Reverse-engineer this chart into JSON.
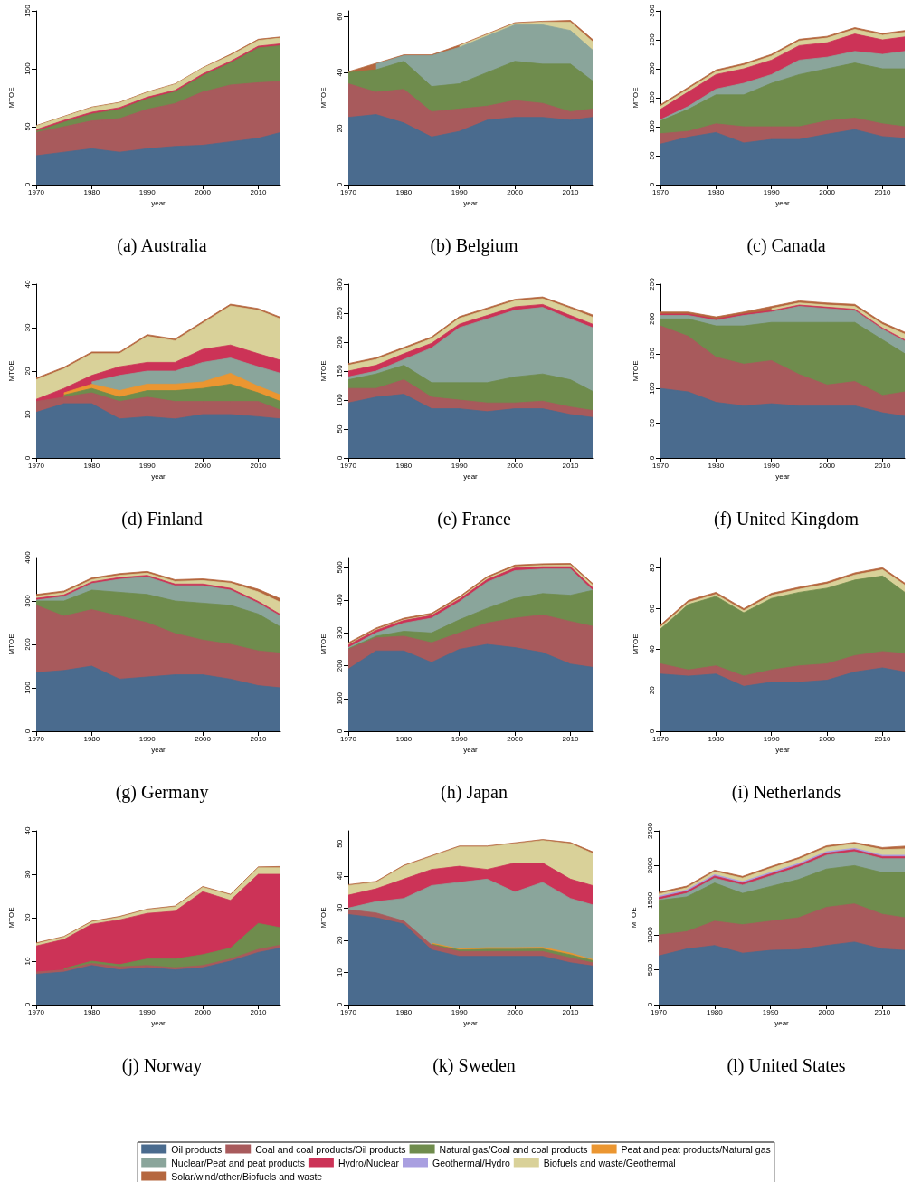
{
  "chart_data": [
    {
      "type": "area",
      "stacked": true,
      "title": "(a) Australia",
      "xlabel": "year",
      "ylabel": "MTOE",
      "x": [
        1970,
        1975,
        1980,
        1985,
        1990,
        1995,
        2000,
        2005,
        2010,
        2014
      ],
      "xlim": [
        1970,
        2014
      ],
      "xticks": [
        1970,
        1980,
        1990,
        2000,
        2010
      ],
      "ylim": [
        0,
        150
      ],
      "yticks": [
        0,
        50,
        100,
        150
      ],
      "series": [
        {
          "color": "#4a6b8e",
          "values": [
            25,
            28,
            31,
            28,
            31,
            33,
            34,
            37,
            40,
            45
          ]
        },
        {
          "color": "#a85a5c",
          "values": [
            20,
            22,
            24,
            29,
            34,
            37,
            46,
            49,
            48,
            44
          ]
        },
        {
          "color": "#6f8c4d",
          "values": [
            1,
            4,
            6,
            8,
            9,
            10,
            14,
            19,
            30,
            31
          ]
        },
        {
          "color": "#cc3357",
          "values": [
            1.5,
            1.5,
            1.5,
            1.5,
            1.5,
            1.5,
            1.5,
            1.5,
            1.5,
            1.5
          ]
        },
        {
          "color": "#d9d199",
          "values": [
            3,
            3,
            4,
            4,
            4,
            5,
            5,
            5,
            5,
            5
          ]
        },
        {
          "color": "#b5673f",
          "values": [
            0.5,
            0.5,
            0.5,
            0.5,
            0.5,
            0.5,
            0.5,
            1,
            1,
            1
          ]
        }
      ]
    },
    {
      "type": "area",
      "stacked": true,
      "title": "(b) Belgium",
      "xlabel": "year",
      "ylabel": "MTOE",
      "x": [
        1970,
        1975,
        1980,
        1985,
        1990,
        1995,
        2000,
        2005,
        2010,
        2014
      ],
      "xlim": [
        1970,
        2014
      ],
      "xticks": [
        1970,
        1980,
        1990,
        2000,
        2010
      ],
      "ylim": [
        0,
        62
      ],
      "yticks": [
        0,
        20,
        40,
        60
      ],
      "series": [
        {
          "color": "#4a6b8e",
          "values": [
            24,
            25,
            22,
            17,
            19,
            23,
            24,
            24,
            23,
            24
          ]
        },
        {
          "color": "#a85a5c",
          "values": [
            12,
            8,
            12,
            9,
            8,
            5,
            6,
            5,
            3,
            3
          ]
        },
        {
          "color": "#6f8c4d",
          "values": [
            4,
            8,
            10,
            9,
            9,
            12,
            14,
            14,
            17,
            10
          ]
        },
        {
          "color": "#8aa59b",
          "values": [
            null,
            2,
            2,
            11,
            13,
            13,
            13,
            14,
            12,
            11
          ]
        },
        {
          "color": "#d9d199",
          "values": [
            null,
            null,
            null,
            null,
            0.5,
            0.5,
            0.5,
            1,
            3,
            3
          ]
        },
        {
          "color": "#b5673f",
          "values": [
            0.3,
            0.3,
            0.3,
            0.3,
            0.3,
            0.3,
            0.3,
            0.3,
            0.6,
            0.8
          ]
        }
      ]
    },
    {
      "type": "area",
      "stacked": true,
      "title": "(c) Canada",
      "xlabel": "year",
      "ylabel": "MTOE",
      "x": [
        1970,
        1975,
        1980,
        1985,
        1990,
        1995,
        2000,
        2005,
        2010,
        2014
      ],
      "xlim": [
        1970,
        2014
      ],
      "xticks": [
        1970,
        1980,
        1990,
        2000,
        2010
      ],
      "ylim": [
        0,
        300
      ],
      "yticks": [
        0,
        50,
        100,
        150,
        200,
        250,
        300
      ],
      "series": [
        {
          "color": "#4a6b8e",
          "values": [
            70,
            82,
            90,
            72,
            78,
            78,
            87,
            95,
            83,
            80
          ]
        },
        {
          "color": "#a85a5c",
          "values": [
            18,
            10,
            15,
            28,
            22,
            22,
            23,
            20,
            22,
            20
          ]
        },
        {
          "color": "#6f8c4d",
          "values": [
            22,
            38,
            50,
            55,
            75,
            90,
            90,
            95,
            95,
            100
          ]
        },
        {
          "color": "#8aa59b",
          "values": [
            2,
            5,
            10,
            20,
            15,
            25,
            20,
            20,
            25,
            30
          ]
        },
        {
          "color": "#cc3357",
          "values": [
            18,
            25,
            25,
            25,
            25,
            25,
            25,
            30,
            25,
            25
          ]
        },
        {
          "color": "#d9d199",
          "values": [
            5,
            5,
            5,
            6,
            7,
            8,
            8,
            8,
            8,
            8
          ]
        },
        {
          "color": "#b5673f",
          "values": [
            3,
            3,
            3,
            3,
            3,
            3,
            3,
            3,
            3,
            3
          ]
        }
      ]
    },
    {
      "type": "area",
      "stacked": true,
      "title": "(d) Finland",
      "xlabel": "year",
      "ylabel": "MTOE",
      "x": [
        1970,
        1975,
        1980,
        1985,
        1990,
        1995,
        2000,
        2005,
        2010,
        2014
      ],
      "xlim": [
        1970,
        2014
      ],
      "xticks": [
        1970,
        1980,
        1990,
        2000,
        2010
      ],
      "ylim": [
        0,
        40
      ],
      "yticks": [
        0,
        10,
        20,
        30,
        40
      ],
      "series": [
        {
          "color": "#4a6b8e",
          "values": [
            10.5,
            12.5,
            12.5,
            9,
            9.5,
            9,
            10,
            10,
            9.5,
            9
          ]
        },
        {
          "color": "#a85a5c",
          "values": [
            2.5,
            1.5,
            2.5,
            4,
            4.5,
            4,
            3,
            3,
            3.5,
            2
          ]
        },
        {
          "color": "#6f8c4d",
          "values": [
            null,
            0.5,
            1,
            1,
            1.5,
            2.5,
            3,
            4,
            2,
            2
          ]
        },
        {
          "color": "#eb9631",
          "values": [
            null,
            0.5,
            1,
            1.5,
            1.5,
            1.5,
            1.5,
            2.5,
            1.5,
            1.5
          ]
        },
        {
          "color": "#8aa59b",
          "values": [
            null,
            null,
            0.5,
            3.5,
            3,
            3,
            4.5,
            3.5,
            4.5,
            5
          ]
        },
        {
          "color": "#cc3357",
          "values": [
            0.5,
            1,
            1.5,
            2,
            2,
            2,
            3,
            3,
            3,
            3
          ]
        },
        {
          "color": "#d9d199",
          "values": [
            4.5,
            4.5,
            5,
            3,
            6,
            5,
            6,
            9,
            10,
            9.5
          ]
        },
        {
          "color": "#b5673f",
          "values": [
            0.4,
            0.4,
            0.4,
            0.4,
            0.4,
            0.4,
            0.4,
            0.4,
            0.4,
            0.4
          ]
        }
      ]
    },
    {
      "type": "area",
      "stacked": true,
      "title": "(e) France",
      "xlabel": "year",
      "ylabel": "MTOE",
      "x": [
        1970,
        1975,
        1980,
        1985,
        1990,
        1995,
        2000,
        2005,
        2010,
        2014
      ],
      "xlim": [
        1970,
        2014
      ],
      "xticks": [
        1970,
        1980,
        1990,
        2000,
        2010
      ],
      "ylim": [
        0,
        300
      ],
      "yticks": [
        0,
        50,
        100,
        150,
        200,
        250,
        300
      ],
      "series": [
        {
          "color": "#4a6b8e",
          "values": [
            95,
            105,
            110,
            85,
            85,
            80,
            85,
            85,
            75,
            70
          ]
        },
        {
          "color": "#a85a5c",
          "values": [
            25,
            15,
            25,
            20,
            15,
            15,
            10,
            13,
            13,
            12
          ]
        },
        {
          "color": "#6f8c4d",
          "values": [
            15,
            25,
            25,
            25,
            30,
            35,
            45,
            47,
            47,
            33
          ]
        },
        {
          "color": "#8aa59b",
          "values": [
            5,
            5,
            10,
            60,
            95,
            110,
            115,
            115,
            105,
            110
          ]
        },
        {
          "color": "#cc3357",
          "values": [
            10,
            10,
            10,
            8,
            6,
            6,
            6,
            5,
            6,
            6
          ]
        },
        {
          "color": "#d9d199",
          "values": [
            10,
            10,
            8,
            8,
            10,
            10,
            10,
            10,
            12,
            12
          ]
        },
        {
          "color": "#b5673f",
          "values": [
            3,
            3,
            3,
            3,
            3,
            3,
            3,
            3,
            3,
            4
          ]
        }
      ]
    },
    {
      "type": "area",
      "stacked": true,
      "title": "(f) United Kingdom",
      "xlabel": "year",
      "ylabel": "MTOE",
      "x": [
        1970,
        1975,
        1980,
        1985,
        1990,
        1995,
        2000,
        2005,
        2010,
        2014
      ],
      "xlim": [
        1970,
        2014
      ],
      "xticks": [
        1970,
        1980,
        1990,
        2000,
        2010
      ],
      "ylim": [
        0,
        250
      ],
      "yticks": [
        0,
        50,
        100,
        150,
        200,
        250
      ],
      "series": [
        {
          "color": "#4a6b8e",
          "values": [
            100,
            95,
            80,
            75,
            78,
            75,
            75,
            75,
            65,
            60
          ]
        },
        {
          "color": "#a85a5c",
          "values": [
            90,
            80,
            65,
            60,
            62,
            45,
            30,
            35,
            25,
            35
          ]
        },
        {
          "color": "#6f8c4d",
          "values": [
            10,
            25,
            45,
            55,
            55,
            75,
            90,
            85,
            80,
            55
          ]
        },
        {
          "color": "#8aa59b",
          "values": [
            5,
            5,
            8,
            15,
            15,
            23,
            20,
            17,
            15,
            18
          ]
        },
        {
          "color": "#cc3357",
          "values": [
            2,
            2,
            2,
            2,
            2,
            2,
            2,
            2,
            2,
            2
          ]
        },
        {
          "color": "#d9d199",
          "values": [
            null,
            null,
            null,
            null,
            3,
            3,
            3,
            4,
            5,
            8
          ]
        },
        {
          "color": "#b5673f",
          "values": [
            3,
            3,
            3,
            3,
            3,
            3,
            3,
            3,
            3,
            3
          ]
        }
      ]
    },
    {
      "type": "area",
      "stacked": true,
      "title": "(g) Germany",
      "xlabel": "year",
      "ylabel": "MTOE",
      "x": [
        1970,
        1975,
        1980,
        1985,
        1990,
        1995,
        2000,
        2005,
        2010,
        2014
      ],
      "xlim": [
        1970,
        2014
      ],
      "xticks": [
        1970,
        1980,
        1990,
        2000,
        2010
      ],
      "ylim": [
        0,
        400
      ],
      "yticks": [
        0,
        100,
        200,
        300,
        400
      ],
      "series": [
        {
          "color": "#4a6b8e",
          "values": [
            135,
            140,
            150,
            120,
            125,
            130,
            130,
            120,
            105,
            100
          ]
        },
        {
          "color": "#a85a5c",
          "values": [
            155,
            125,
            130,
            145,
            125,
            95,
            80,
            80,
            80,
            80
          ]
        },
        {
          "color": "#6f8c4d",
          "values": [
            10,
            35,
            45,
            55,
            65,
            75,
            85,
            90,
            85,
            60
          ]
        },
        {
          "color": "#8aa59b",
          "values": [
            2,
            10,
            15,
            30,
            40,
            35,
            40,
            35,
            25,
            25
          ]
        },
        {
          "color": "#cc3357",
          "values": [
            4,
            4,
            4,
            4,
            4,
            4,
            4,
            4,
            4,
            4
          ]
        },
        {
          "color": "#d9d199",
          "values": [
            5,
            5,
            5,
            5,
            5,
            6,
            8,
            12,
            22,
            28
          ]
        },
        {
          "color": "#b5673f",
          "values": [
            4,
            4,
            4,
            4,
            4,
            4,
            4,
            4,
            6,
            8
          ]
        }
      ]
    },
    {
      "type": "area",
      "stacked": true,
      "title": "(h) Japan",
      "xlabel": "year",
      "ylabel": "MTOE",
      "x": [
        1970,
        1975,
        1980,
        1985,
        1990,
        1995,
        2000,
        2005,
        2010,
        2014
      ],
      "xlim": [
        1970,
        2014
      ],
      "xticks": [
        1970,
        1980,
        1990,
        2000,
        2010
      ],
      "ylim": [
        0,
        530
      ],
      "yticks": [
        0,
        100,
        200,
        300,
        400,
        500
      ],
      "series": [
        {
          "color": "#4a6b8e",
          "values": [
            190,
            245,
            245,
            210,
            250,
            265,
            255,
            240,
            205,
            195
          ]
        },
        {
          "color": "#a85a5c",
          "values": [
            60,
            40,
            45,
            60,
            50,
            65,
            90,
            115,
            130,
            125
          ]
        },
        {
          "color": "#6f8c4d",
          "values": [
            2,
            5,
            15,
            30,
            40,
            45,
            60,
            65,
            80,
            110
          ]
        },
        {
          "color": "#8aa59b",
          "values": [
            3,
            10,
            25,
            45,
            55,
            80,
            85,
            75,
            80,
            0
          ]
        },
        {
          "color": "#cc3357",
          "values": [
            8,
            8,
            8,
            8,
            8,
            8,
            8,
            7,
            7,
            8
          ]
        },
        {
          "color": "#d9d199",
          "values": [
            2,
            2,
            2,
            2,
            3,
            4,
            4,
            4,
            5,
            8
          ]
        },
        {
          "color": "#b5673f",
          "values": [
            5,
            5,
            5,
            5,
            5,
            5,
            5,
            5,
            5,
            5
          ]
        }
      ]
    },
    {
      "type": "area",
      "stacked": true,
      "title": "(i) Netherlands",
      "xlabel": "year",
      "ylabel": "MTOE",
      "x": [
        1970,
        1975,
        1980,
        1985,
        1990,
        1995,
        2000,
        2005,
        2010,
        2014
      ],
      "xlim": [
        1970,
        2014
      ],
      "xticks": [
        1970,
        1980,
        1990,
        2000,
        2010
      ],
      "ylim": [
        0,
        85
      ],
      "yticks": [
        0,
        20,
        40,
        60,
        80
      ],
      "series": [
        {
          "color": "#4a6b8e",
          "values": [
            28,
            27,
            28,
            22,
            24,
            24,
            25,
            29,
            31,
            29
          ]
        },
        {
          "color": "#a85a5c",
          "values": [
            5,
            3,
            4,
            5,
            6,
            8,
            8,
            8,
            8,
            9
          ]
        },
        {
          "color": "#6f8c4d",
          "values": [
            17,
            32,
            34,
            31,
            35,
            36,
            37,
            37,
            37,
            30
          ]
        },
        {
          "color": "#d9d199",
          "values": [
            1,
            1,
            1,
            1,
            1.5,
            1.5,
            2,
            2.5,
            3,
            3.5
          ]
        },
        {
          "color": "#b5673f",
          "values": [
            1,
            1,
            1,
            1,
            1,
            1,
            1,
            1,
            1,
            1
          ]
        }
      ]
    },
    {
      "type": "area",
      "stacked": true,
      "title": "(j) Norway",
      "xlabel": "year",
      "ylabel": "MTOE",
      "x": [
        1970,
        1975,
        1980,
        1985,
        1990,
        1995,
        2000,
        2005,
        2010,
        2014
      ],
      "xlim": [
        1970,
        2014
      ],
      "xticks": [
        1970,
        1980,
        1990,
        2000,
        2010
      ],
      "ylim": [
        0,
        40
      ],
      "yticks": [
        0,
        10,
        20,
        30,
        40
      ],
      "series": [
        {
          "color": "#4a6b8e",
          "values": [
            7,
            7.5,
            9,
            8,
            8.5,
            8,
            8.5,
            10,
            12,
            13
          ]
        },
        {
          "color": "#a85a5c",
          "values": [
            0.5,
            0.5,
            0.5,
            0.7,
            0.5,
            0.5,
            0.5,
            0.5,
            0.7,
            0.7
          ]
        },
        {
          "color": "#6f8c4d",
          "values": [
            null,
            0.3,
            0.5,
            0.5,
            1.5,
            2,
            2.5,
            2.5,
            6,
            4
          ]
        },
        {
          "color": "#cc3357",
          "values": [
            6,
            6.7,
            8.5,
            10.3,
            10.5,
            11,
            14.5,
            11,
            11.3,
            12.3
          ]
        },
        {
          "color": "#d9d199",
          "values": [
            0.5,
            0.5,
            0.5,
            0.6,
            0.8,
            1,
            1,
            1.2,
            1.5,
            1.5
          ]
        },
        {
          "color": "#b5673f",
          "values": [
            0.2,
            0.2,
            0.2,
            0.2,
            0.2,
            0.2,
            0.2,
            0.2,
            0.2,
            0.3
          ]
        }
      ]
    },
    {
      "type": "area",
      "stacked": true,
      "title": "(k) Sweden",
      "xlabel": "year",
      "ylabel": "MTOE",
      "x": [
        1970,
        1975,
        1980,
        1985,
        1990,
        1995,
        2000,
        2005,
        2010,
        2014
      ],
      "xlim": [
        1970,
        2014
      ],
      "xticks": [
        1970,
        1980,
        1990,
        2000,
        2010
      ],
      "ylim": [
        0,
        54
      ],
      "yticks": [
        0,
        10,
        20,
        30,
        40,
        50
      ],
      "series": [
        {
          "color": "#4a6b8e",
          "values": [
            28,
            27,
            25,
            17,
            15,
            15,
            15,
            15,
            13,
            12
          ]
        },
        {
          "color": "#a85a5c",
          "values": [
            1.5,
            1.5,
            1,
            1.5,
            1.5,
            1.5,
            1.5,
            1.5,
            1.5,
            1
          ]
        },
        {
          "color": "#6f8c4d",
          "values": [
            null,
            null,
            null,
            0.3,
            0.5,
            0.7,
            0.7,
            0.8,
            1,
            0.7
          ]
        },
        {
          "color": "#eb9631",
          "values": [
            null,
            null,
            null,
            0.3,
            0.3,
            0.5,
            0.5,
            0.5,
            0.5,
            0.3
          ]
        },
        {
          "color": "#8aa59b",
          "values": [
            0.5,
            3.5,
            7,
            17.9,
            20.7,
            21.3,
            17.3,
            20.2,
            17,
            17
          ]
        },
        {
          "color": "#cc3357",
          "values": [
            4,
            4,
            6,
            5,
            5,
            3,
            9,
            6,
            6,
            6
          ]
        },
        {
          "color": "#d9d199",
          "values": [
            3,
            2,
            4,
            4,
            6,
            7,
            6,
            7,
            11,
            10
          ]
        },
        {
          "color": "#b5673f",
          "values": [
            0.3,
            0.3,
            0.3,
            0.3,
            0.3,
            0.3,
            0.3,
            0.3,
            0.4,
            0.5
          ]
        }
      ]
    },
    {
      "type": "area",
      "stacked": true,
      "legend": "bottom",
      "title": "(l) United States",
      "xlabel": "year",
      "ylabel": "MTOE",
      "x": [
        1970,
        1975,
        1980,
        1985,
        1990,
        1995,
        2000,
        2005,
        2010,
        2014
      ],
      "xlim": [
        1970,
        2014
      ],
      "xticks": [
        1970,
        1980,
        1990,
        2000,
        2010
      ],
      "ylim": [
        0,
        2500
      ],
      "yticks": [
        0,
        500,
        1000,
        1500,
        2000,
        2500
      ],
      "series": [
        {
          "name": "Oil products",
          "color": "#4a6b8e",
          "values": [
            700,
            800,
            850,
            740,
            780,
            790,
            850,
            900,
            800,
            780
          ]
        },
        {
          "name": "Coal and coal products/Oil products",
          "color": "#a85a5c",
          "values": [
            300,
            250,
            350,
            410,
            420,
            460,
            550,
            550,
            500,
            470
          ]
        },
        {
          "name": "Natural gas/Coal and coal products",
          "color": "#6f8c4d",
          "values": [
            500,
            500,
            550,
            450,
            500,
            550,
            550,
            550,
            600,
            650
          ]
        },
        {
          "name": "Peat and peat products/Natural gas",
          "color": "#eb9631",
          "values": [
            null,
            null,
            null,
            null,
            null,
            null,
            null,
            null,
            null,
            null
          ]
        },
        {
          "name": "Nuclear/Peat and peat products",
          "color": "#8aa59b",
          "values": [
            10,
            50,
            70,
            120,
            150,
            180,
            200,
            200,
            200,
            200
          ]
        },
        {
          "name": "Hydro/Nuclear",
          "color": "#cc3357",
          "values": [
            30,
            30,
            30,
            30,
            30,
            30,
            30,
            30,
            30,
            30
          ]
        },
        {
          "name": "Geothermal/Hydro",
          "color": "#a99fe0",
          "values": [
            20,
            20,
            20,
            20,
            20,
            20,
            20,
            20,
            20,
            20
          ]
        },
        {
          "name": "Biofuels and waste/Geothermal",
          "color": "#d9d199",
          "values": [
            30,
            30,
            40,
            50,
            60,
            60,
            60,
            60,
            80,
            90
          ]
        },
        {
          "name": "Solar/wind/other/Biofuels and waste",
          "color": "#b5673f",
          "values": [
            25,
            25,
            25,
            25,
            25,
            25,
            25,
            25,
            30,
            40
          ]
        }
      ]
    }
  ]
}
